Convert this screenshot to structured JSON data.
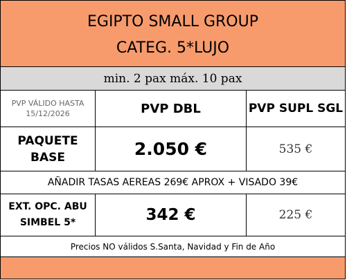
{
  "header": {
    "title_line1": "EGIPTO SMALL GROUP",
    "title_line2": "CATEG. 5*LUJO"
  },
  "pax_range": "min. 2 pax máx. 10 pax",
  "columns": {
    "valid_line1": "PVP VÁLIDO HASTA",
    "valid_line2": "15/12/2026",
    "pvp_dbl": "PVP DBL",
    "pvp_supl_sgl": "PVP SUPL SGL"
  },
  "rows": [
    {
      "label_line1": "PAQUETE",
      "label_line2": "BASE",
      "dbl": "2.050 €",
      "sgl": "535 €"
    },
    {
      "label_line1": "EXT. OPC. ABU",
      "label_line2": "SIMBEL 5*",
      "dbl": "342 €",
      "sgl": "225 €"
    }
  ],
  "taxes_note": "AÑADIR TASAS AEREAS 269€ APROX + VISADO 39€",
  "footer_note": "Precios NO válidos S.Santa, Navidad y Fin de Año",
  "colors": {
    "header_orange": "#f79b6d",
    "pax_gray": "#d9d9d9"
  }
}
